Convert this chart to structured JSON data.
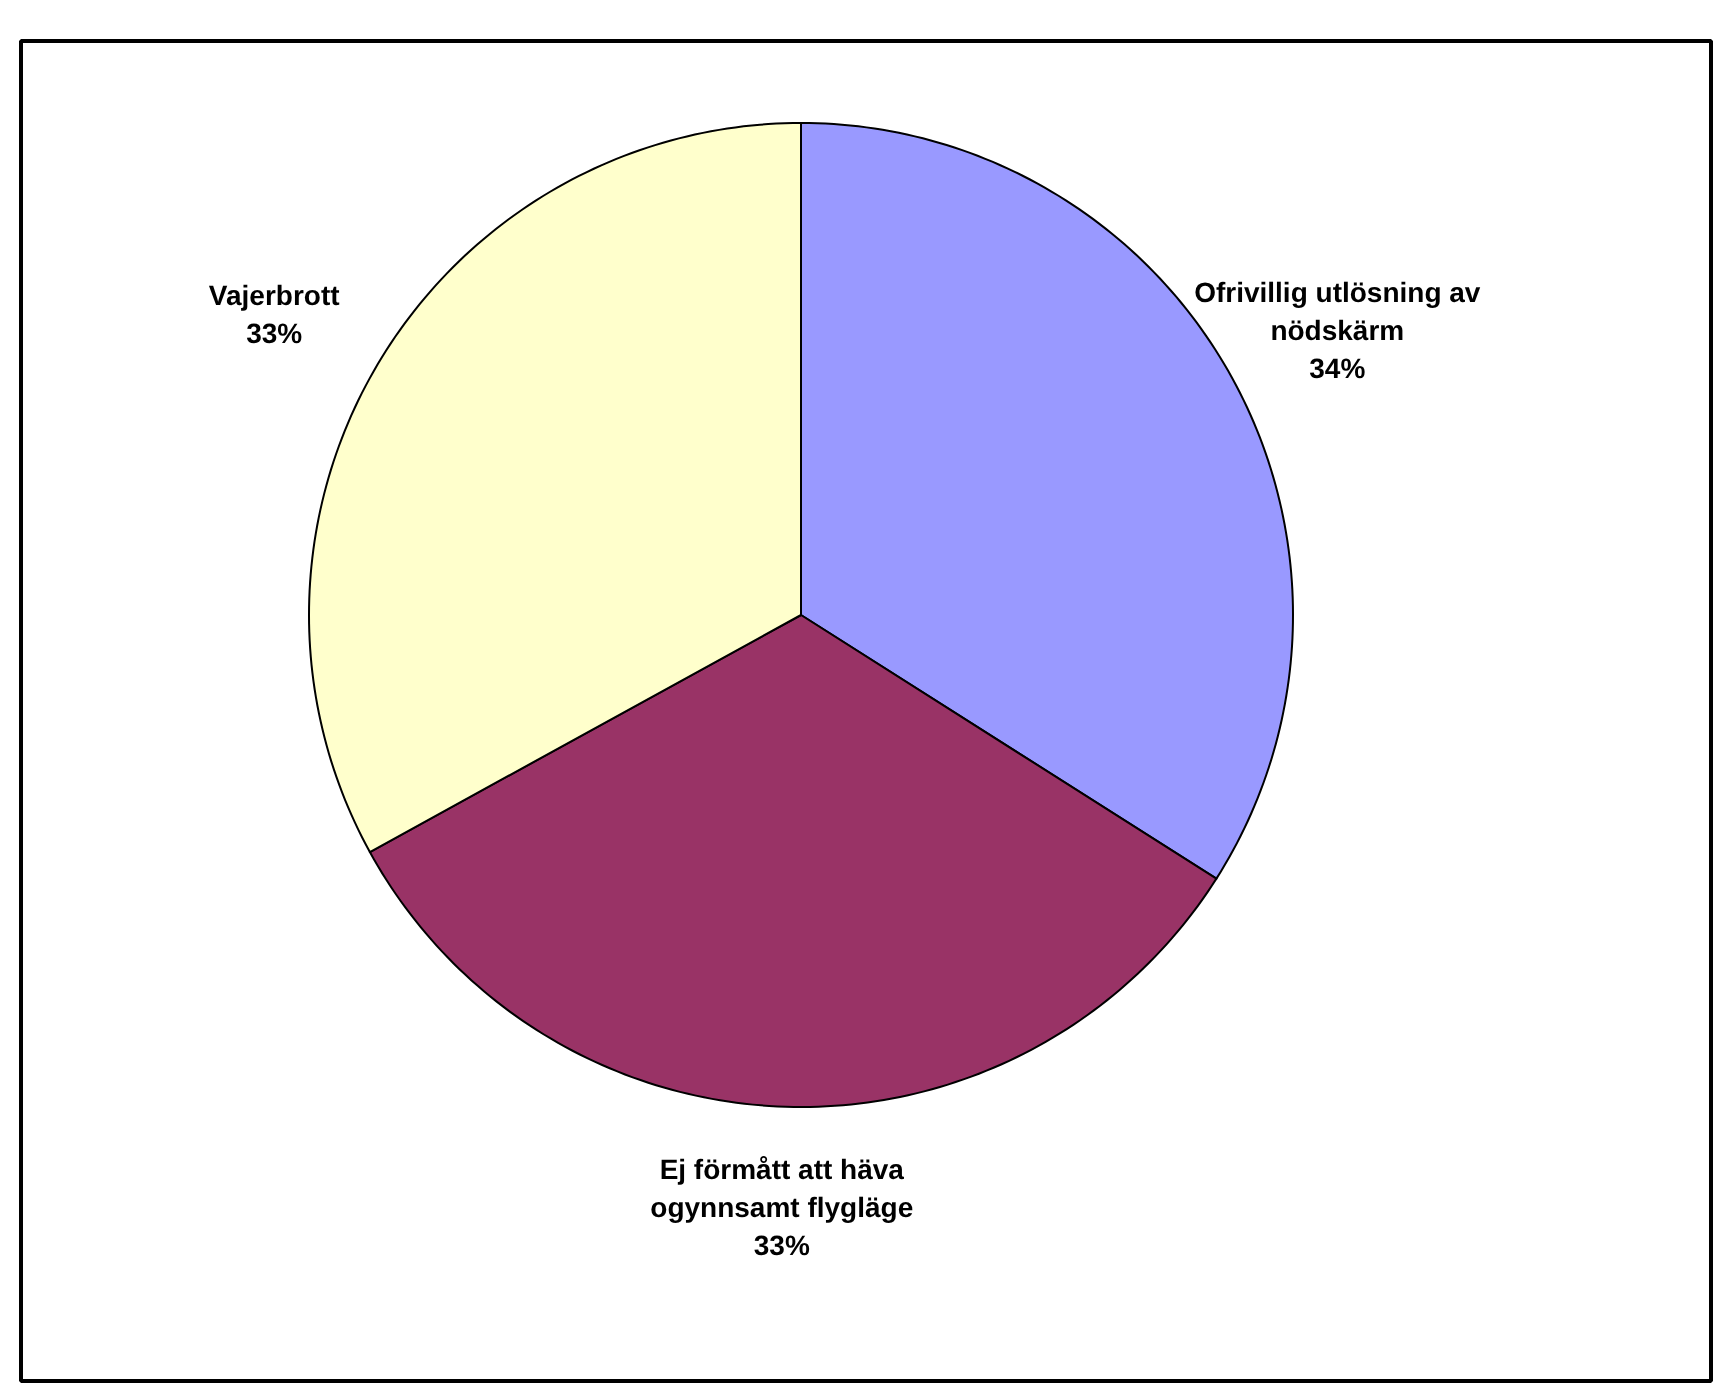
{
  "chart_data": {
    "type": "pie",
    "categories": [
      "Ofrivillig utlösning av nödskärm",
      "Ej förmått att häva ogynnsamt flygläge",
      "Vajerbrott"
    ],
    "values": [
      34,
      33,
      33
    ],
    "colors": [
      "#9999ff",
      "#993366",
      "#ffffcc"
    ],
    "value_labels": [
      "34%",
      "33%",
      "33%"
    ]
  }
}
